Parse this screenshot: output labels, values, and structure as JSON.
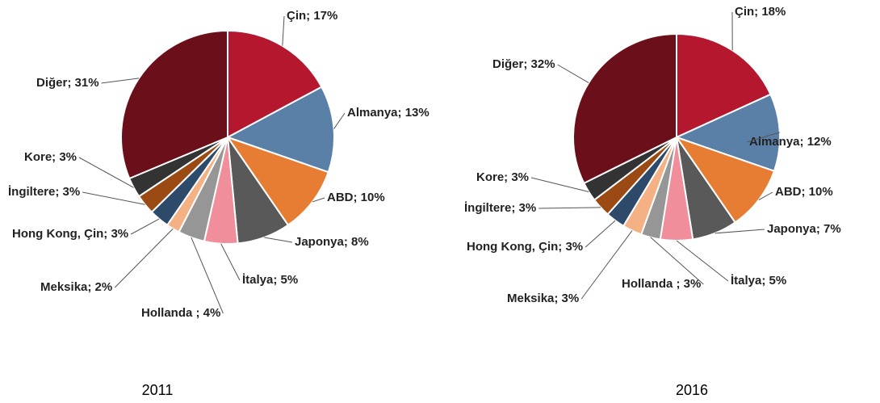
{
  "chart_data": [
    {
      "type": "pie",
      "title": "2011",
      "categories": [
        "Çin",
        "Almanya",
        "ABD",
        "Japonya",
        "İtalya",
        "Hollanda",
        "Meksika",
        "Hong Kong, Çin",
        "İngiltere",
        "Kore",
        "Diğer"
      ],
      "values": [
        17,
        13,
        10,
        8,
        5,
        4,
        2,
        3,
        3,
        3,
        31
      ],
      "value_labels": [
        "Çin; 17%",
        "Almanya; 13%",
        "ABD; 10%",
        "Japonya; 8%",
        "İtalya; 5%",
        "Hollanda ; 4%",
        "Meksika; 2%",
        "Hong Kong, Çin; 3%",
        "İngiltere; 3%",
        "Kore; 3%",
        "Diğer; 31%"
      ],
      "colors": [
        "#b5172f",
        "#5b80a8",
        "#e77d33",
        "#595959",
        "#f08e9c",
        "#969696",
        "#f4b183",
        "#2e4a6b",
        "#9c4a13",
        "#333333",
        "#6b0f1a"
      ]
    },
    {
      "type": "pie",
      "title": "2016",
      "categories": [
        "Çin",
        "Almanya",
        "ABD",
        "Japonya",
        "İtalya",
        "Hollanda",
        "Meksika",
        "Hong Kong, Çin",
        "İngiltere",
        "Kore",
        "Diğer"
      ],
      "values": [
        18,
        12,
        10,
        7,
        5,
        3,
        3,
        3,
        3,
        3,
        32
      ],
      "value_labels": [
        "Çin; 18%",
        "Almanya; 12%",
        "ABD; 10%",
        "Japonya; 7%",
        "İtalya; 5%",
        "Hollanda ; 3%",
        "Meksika; 3%",
        "Hong Kong, Çin; 3%",
        "İngiltere; 3%",
        "Kore; 3%",
        "Diğer; 32%"
      ],
      "colors": [
        "#b5172f",
        "#5b80a8",
        "#e77d33",
        "#595959",
        "#f08e9c",
        "#969696",
        "#f4b183",
        "#2e4a6b",
        "#9c4a13",
        "#333333",
        "#6b0f1a"
      ]
    }
  ]
}
